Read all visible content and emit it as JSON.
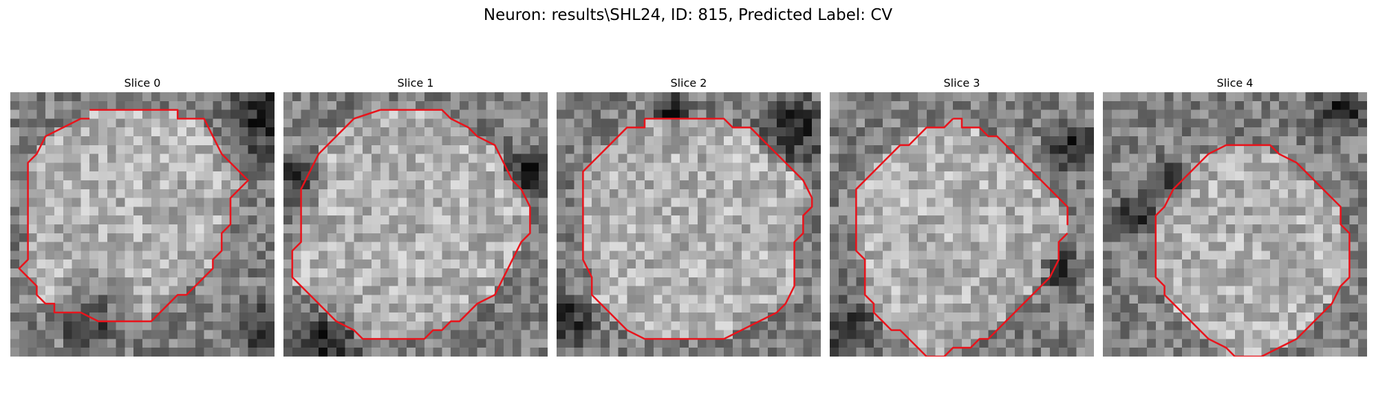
{
  "figure": {
    "title": "Neuron: results\\SHL24, ID: 815, Predicted Label: CV"
  },
  "contour_color": "#e8141c",
  "image": {
    "colormap": "gray",
    "grid_size": 30
  },
  "slices": [
    {
      "title": "Slice 0",
      "dark_spots": [
        [
          29,
          3,
          6
        ],
        [
          29,
          27,
          4
        ],
        [
          9,
          25,
          5
        ]
      ],
      "contour": [
        [
          9,
          2
        ],
        [
          19,
          2
        ],
        [
          19,
          3
        ],
        [
          22,
          3
        ],
        [
          23,
          5
        ],
        [
          24,
          7
        ],
        [
          25,
          8
        ],
        [
          27,
          10
        ],
        [
          25,
          12
        ],
        [
          25,
          15
        ],
        [
          24,
          16
        ],
        [
          24,
          18
        ],
        [
          23,
          19
        ],
        [
          23,
          20
        ],
        [
          22,
          21
        ],
        [
          21,
          22
        ],
        [
          20,
          23
        ],
        [
          19,
          23
        ],
        [
          18,
          24
        ],
        [
          16,
          26
        ],
        [
          10,
          26
        ],
        [
          8,
          25
        ],
        [
          5,
          25
        ],
        [
          5,
          24
        ],
        [
          4,
          24
        ],
        [
          3,
          23
        ],
        [
          3,
          22
        ],
        [
          2,
          21
        ],
        [
          1,
          20
        ],
        [
          2,
          19
        ],
        [
          2,
          18
        ],
        [
          2,
          8
        ],
        [
          3,
          7
        ],
        [
          4,
          5
        ],
        [
          6,
          4
        ],
        [
          8,
          3
        ],
        [
          9,
          3
        ]
      ]
    },
    {
      "title": "Slice 1",
      "dark_spots": [
        [
          2,
          10,
          4
        ],
        [
          5,
          28,
          5
        ],
        [
          28,
          9,
          4
        ]
      ],
      "contour": [
        [
          11,
          2
        ],
        [
          18,
          2
        ],
        [
          19,
          3
        ],
        [
          21,
          4
        ],
        [
          22,
          5
        ],
        [
          24,
          6
        ],
        [
          25,
          8
        ],
        [
          26,
          10
        ],
        [
          27,
          11
        ],
        [
          28,
          13
        ],
        [
          28,
          16
        ],
        [
          27,
          17
        ],
        [
          26,
          19
        ],
        [
          25,
          21
        ],
        [
          24,
          23
        ],
        [
          22,
          24
        ],
        [
          20,
          26
        ],
        [
          19,
          26
        ],
        [
          18,
          27
        ],
        [
          17,
          27
        ],
        [
          16,
          28
        ],
        [
          9,
          28
        ],
        [
          8,
          27
        ],
        [
          6,
          26
        ],
        [
          5,
          25
        ],
        [
          4,
          24
        ],
        [
          3,
          23
        ],
        [
          2,
          22
        ],
        [
          1,
          21
        ],
        [
          1,
          18
        ],
        [
          2,
          17
        ],
        [
          2,
          11
        ],
        [
          3,
          9
        ],
        [
          4,
          7
        ],
        [
          5,
          6
        ],
        [
          6,
          5
        ],
        [
          7,
          4
        ],
        [
          8,
          3
        ],
        [
          11,
          2
        ]
      ]
    },
    {
      "title": "Slice 2",
      "dark_spots": [
        [
          27,
          4,
          5
        ],
        [
          1,
          26,
          4
        ],
        [
          13,
          2,
          3
        ]
      ],
      "contour": [
        [
          10,
          3
        ],
        [
          19,
          3
        ],
        [
          20,
          4
        ],
        [
          22,
          4
        ],
        [
          24,
          6
        ],
        [
          25,
          7
        ],
        [
          26,
          8
        ],
        [
          27,
          9
        ],
        [
          28,
          10
        ],
        [
          29,
          12
        ],
        [
          29,
          13
        ],
        [
          28,
          14
        ],
        [
          28,
          16
        ],
        [
          27,
          17
        ],
        [
          27,
          22
        ],
        [
          26,
          24
        ],
        [
          25,
          25
        ],
        [
          23,
          26
        ],
        [
          21,
          27
        ],
        [
          19,
          28
        ],
        [
          10,
          28
        ],
        [
          8,
          27
        ],
        [
          7,
          26
        ],
        [
          6,
          25
        ],
        [
          5,
          24
        ],
        [
          4,
          23
        ],
        [
          4,
          21
        ],
        [
          3,
          19
        ],
        [
          3,
          9
        ],
        [
          4,
          8
        ],
        [
          5,
          7
        ],
        [
          6,
          6
        ],
        [
          8,
          4
        ],
        [
          10,
          4
        ],
        [
          10,
          3
        ]
      ]
    },
    {
      "title": "Slice 3",
      "dark_spots": [
        [
          28,
          6,
          4
        ],
        [
          2,
          27,
          4
        ],
        [
          26,
          20,
          3
        ]
      ],
      "contour": [
        [
          14,
          3
        ],
        [
          15,
          3
        ],
        [
          15,
          4
        ],
        [
          16,
          4
        ],
        [
          17,
          4
        ],
        [
          18,
          5
        ],
        [
          19,
          5
        ],
        [
          20,
          6
        ],
        [
          21,
          7
        ],
        [
          22,
          8
        ],
        [
          23,
          9
        ],
        [
          24,
          10
        ],
        [
          25,
          11
        ],
        [
          26,
          12
        ],
        [
          27,
          13
        ],
        [
          27,
          15
        ],
        [
          27,
          14
        ]
      ],
      "contour2": [
        [
          27,
          16
        ],
        [
          26,
          17
        ],
        [
          26,
          19
        ],
        [
          25,
          21
        ],
        [
          24,
          22
        ],
        [
          23,
          23
        ],
        [
          22,
          24
        ],
        [
          21,
          25
        ],
        [
          20,
          26
        ],
        [
          19,
          27
        ],
        [
          18,
          28
        ],
        [
          17,
          28
        ],
        [
          16,
          29
        ],
        [
          14,
          29
        ],
        [
          13,
          30
        ],
        [
          11,
          30
        ],
        [
          10,
          29
        ],
        [
          9,
          28
        ],
        [
          8,
          27
        ],
        [
          7,
          27
        ],
        [
          6,
          26
        ],
        [
          5,
          25
        ],
        [
          5,
          24
        ],
        [
          4,
          23
        ],
        [
          4,
          19
        ],
        [
          3,
          18
        ],
        [
          3,
          11
        ],
        [
          4,
          10
        ],
        [
          5,
          9
        ],
        [
          6,
          8
        ],
        [
          7,
          7
        ],
        [
          8,
          6
        ],
        [
          9,
          6
        ],
        [
          10,
          5
        ],
        [
          11,
          4
        ],
        [
          12,
          4
        ],
        [
          13,
          4
        ],
        [
          14,
          3
        ]
      ]
    },
    {
      "title": "Slice 4",
      "dark_spots": [
        [
          4,
          14,
          3
        ],
        [
          8,
          10,
          3
        ],
        [
          27,
          2,
          4
        ]
      ],
      "contour": [
        [
          14,
          6
        ],
        [
          19,
          6
        ],
        [
          20,
          7
        ],
        [
          22,
          8
        ],
        [
          23,
          9
        ],
        [
          25,
          11
        ],
        [
          26,
          12
        ],
        [
          27,
          13
        ],
        [
          27,
          15
        ],
        [
          28,
          16
        ],
        [
          28,
          21
        ],
        [
          27,
          22
        ],
        [
          26,
          24
        ],
        [
          25,
          25
        ],
        [
          24,
          26
        ],
        [
          23,
          27
        ],
        [
          22,
          28
        ],
        [
          20,
          29
        ],
        [
          18,
          30
        ],
        [
          15,
          30
        ],
        [
          14,
          29
        ],
        [
          12,
          28
        ],
        [
          11,
          27
        ],
        [
          10,
          26
        ],
        [
          9,
          25
        ],
        [
          8,
          24
        ],
        [
          7,
          23
        ],
        [
          7,
          22
        ],
        [
          6,
          21
        ],
        [
          6,
          14
        ],
        [
          7,
          13
        ],
        [
          8,
          11
        ],
        [
          9,
          10
        ],
        [
          10,
          9
        ],
        [
          11,
          8
        ],
        [
          12,
          7
        ],
        [
          14,
          6
        ]
      ]
    }
  ]
}
